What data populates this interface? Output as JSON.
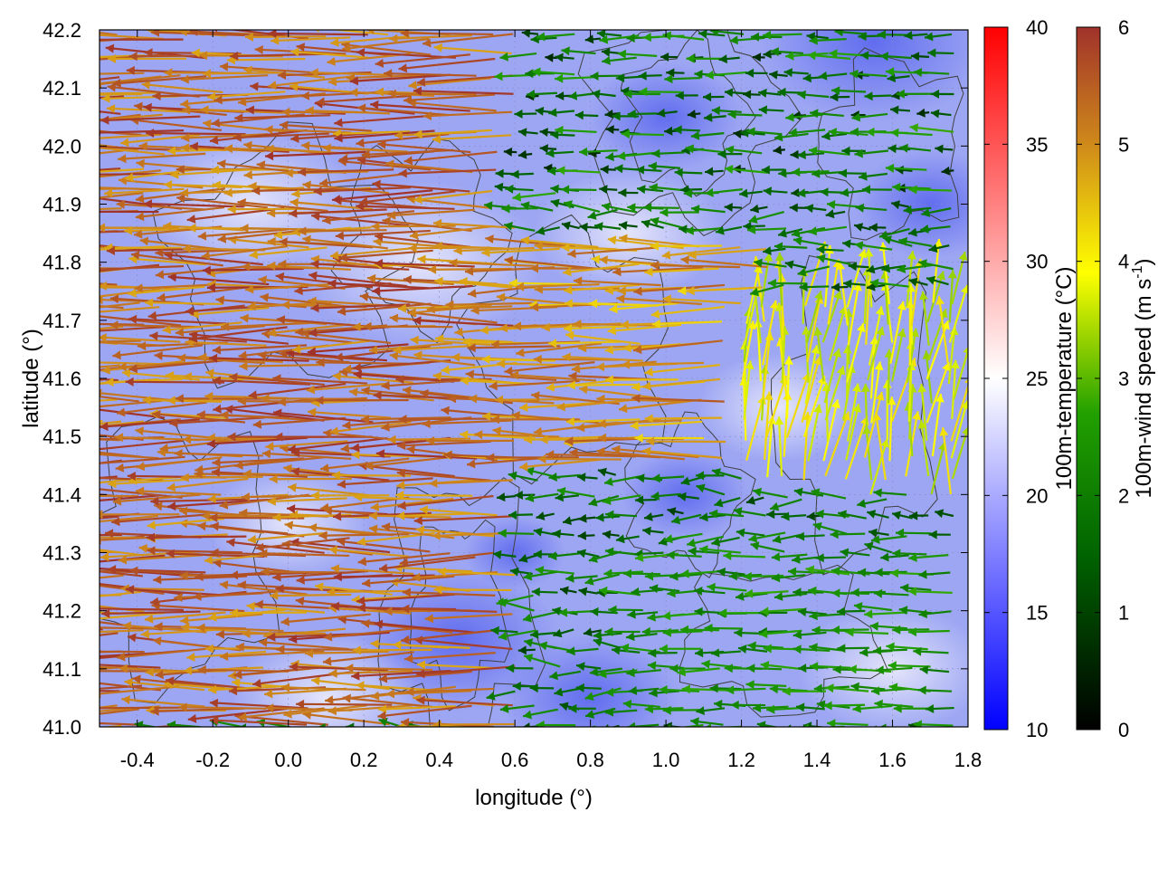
{
  "chart_data": {
    "type": "vector-field",
    "title": "",
    "xlabel": "longitude (°)",
    "ylabel": "latitude (°)",
    "xlim": [
      -0.5,
      1.8
    ],
    "ylim": [
      41.0,
      42.2
    ],
    "xticks": [
      -0.4,
      -0.2,
      0.0,
      0.2,
      0.4,
      0.6,
      0.8,
      1.0,
      1.2,
      1.4,
      1.6,
      1.8
    ],
    "xtick_labels": [
      "-0.4",
      "-0.2",
      "0.0",
      "0.2",
      "0.4",
      "0.6",
      "0.8",
      "1.0",
      "1.2",
      "1.4",
      "1.6",
      "1.8"
    ],
    "yticks": [
      41.0,
      41.1,
      41.2,
      41.3,
      41.4,
      41.5,
      41.6,
      41.7,
      41.8,
      41.9,
      42.0,
      42.1,
      42.2
    ],
    "ytick_labels": [
      "41.0",
      "41.1",
      "41.2",
      "41.3",
      "41.4",
      "41.5",
      "41.6",
      "41.7",
      "41.8",
      "41.9",
      "42.0",
      "42.1",
      "42.2"
    ],
    "grid": true,
    "background_field": {
      "name": "100m-temperature",
      "colorbar_label": "100m-temperature (°C)",
      "range": [
        10,
        40
      ],
      "ticks": [
        10,
        15,
        20,
        25,
        30,
        35,
        40
      ],
      "tick_labels": [
        "10",
        "15",
        "20",
        "25",
        "30",
        "35",
        "40"
      ],
      "colormap": [
        "#0000ff",
        "#ffffff",
        "#ff0000"
      ],
      "dominant_range": [
        16,
        23
      ]
    },
    "vector_field": {
      "name": "100m-wind speed",
      "colorbar_label": "100m-wind speed (m s",
      "colorbar_label_superscript": "-1",
      "colorbar_label_suffix": ")",
      "range": [
        0,
        6
      ],
      "ticks": [
        0,
        1,
        2,
        3,
        4,
        5,
        6
      ],
      "tick_labels": [
        "0",
        "1",
        "2",
        "3",
        "4",
        "5",
        "6"
      ],
      "colormap": [
        "#000000",
        "#006400",
        "#22a000",
        "#ffff00",
        "#d08b1a",
        "#a0322a"
      ],
      "predominant_direction": "westward (easterly flow)",
      "regions": [
        {
          "lon": [
            -0.5,
            0.6
          ],
          "lat": [
            41.0,
            42.2
          ],
          "speed": [
            4.5,
            6.0
          ]
        },
        {
          "lon": [
            0.6,
            1.3
          ],
          "lat": [
            41.45,
            41.85
          ],
          "speed": [
            4.0,
            5.5
          ]
        },
        {
          "lon": [
            0.9,
            1.8
          ],
          "lat": [
            41.0,
            41.3
          ],
          "speed": [
            1.5,
            2.5
          ]
        },
        {
          "lon": [
            1.2,
            1.8
          ],
          "lat": [
            41.4,
            41.75
          ],
          "speed": [
            3.0,
            4.0
          ],
          "direction": "north-east"
        },
        {
          "lon": [
            0.6,
            1.8
          ],
          "lat": [
            41.9,
            42.2
          ],
          "speed": [
            0.5,
            2.5
          ]
        }
      ]
    },
    "contours": {
      "color": "#404040"
    }
  }
}
